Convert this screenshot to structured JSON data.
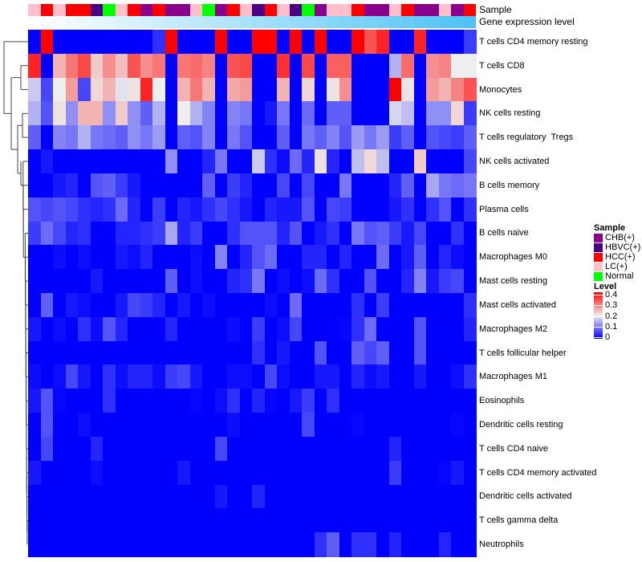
{
  "chart_data": {
    "type": "heatmap",
    "annotations": {
      "sample_label": "Sample",
      "expression_label": "Gene expression level",
      "expression_colors": [
        "#ffffff",
        "#4fc3f7"
      ]
    },
    "columns": [
      "LC(+)",
      "HCC(+)",
      "LC(+)",
      "HCC(+)",
      "HCC(+)",
      "HBVC(+)",
      "Normal",
      "LC(+)",
      "HCC(+)",
      "CHB(+)",
      "HCC(+)",
      "CHB(+)",
      "CHB(+)",
      "LC(+)",
      "Normal",
      "CHB(+)",
      "HCC(+)",
      "LC(+)",
      "HBVC(+)",
      "HCC(+)",
      "LC(+)",
      "HBVC(+)",
      "Normal",
      "CHB(+)",
      "LC(+)",
      "LC(+)",
      "HCC(+)",
      "CHB(+)",
      "CHB(+)",
      "LC(+)",
      "HCC(+)",
      "CHB(+)",
      "CHB(+)",
      "LC(+)",
      "CHB(+)",
      "HCC(+)"
    ],
    "rows": [
      "T cells CD4 memory resting",
      "T cells CD8",
      "Monocytes",
      "NK cells resting",
      "T cells regulatory  Tregs",
      "NK cells activated",
      "B cells memory",
      "Plasma cells",
      "B cells naive",
      "Macrophages M0",
      "Mast cells resting",
      "Mast cells activated",
      "Macrophages M2",
      "T cells follicular helper",
      "Macrophages M1",
      "Eosinophils",
      "Dendritic cells resting",
      "T cells CD4 naive",
      "T cells CD4 memory activated",
      "Dendritic cells activated",
      "T cells gamma delta",
      "Neutrophils"
    ],
    "values": [
      [
        0,
        0.4,
        0,
        0,
        0,
        0,
        0,
        0,
        0,
        0,
        0.04,
        0.4,
        0,
        0,
        0,
        0.4,
        0,
        0,
        0.4,
        0.4,
        0,
        0.4,
        0,
        0.4,
        0,
        0,
        0.4,
        0.33,
        0.37,
        0,
        0,
        0.37,
        0,
        0,
        0,
        0.05
      ],
      [
        0.37,
        0,
        0.25,
        0.3,
        0.34,
        0.23,
        0.28,
        0.24,
        0.33,
        0.28,
        0.3,
        0,
        0.3,
        0.31,
        0.29,
        0,
        0.33,
        0.34,
        0,
        0,
        0.36,
        0,
        0.34,
        0,
        0.32,
        0.32,
        0,
        0,
        0,
        0.15,
        0.31,
        0,
        0.28,
        0.29,
        0.2,
        0.2
      ],
      [
        0.17,
        0.06,
        0.2,
        0.27,
        0.06,
        0.22,
        0.25,
        0.19,
        0.21,
        0.37,
        0.2,
        0,
        0.25,
        0.3,
        0.25,
        0,
        0.26,
        0.27,
        0,
        0,
        0.25,
        0,
        0.22,
        0,
        0.21,
        0.28,
        0,
        0,
        0,
        0.4,
        0.21,
        0,
        0.27,
        0.25,
        0.29,
        0.33
      ],
      [
        0.15,
        0.07,
        0.21,
        0.12,
        0.25,
        0.25,
        0.12,
        0.23,
        0.12,
        0.08,
        0.15,
        0,
        0.2,
        0.15,
        0.11,
        0,
        0.11,
        0.1,
        0,
        0.02,
        0.1,
        0,
        0.09,
        0,
        0.08,
        0.08,
        0,
        0,
        0,
        0.18,
        0.16,
        0,
        0.12,
        0.12,
        0.22,
        0.05
      ],
      [
        0.08,
        0,
        0.11,
        0.1,
        0.15,
        0.1,
        0.09,
        0.08,
        0.12,
        0.1,
        0.13,
        0,
        0.08,
        0.07,
        0.11,
        0,
        0.1,
        0.07,
        0,
        0,
        0.08,
        0,
        0.1,
        0.08,
        0.11,
        0.07,
        0.13,
        0.1,
        0.13,
        0.05,
        0.08,
        0,
        0.07,
        0.06,
        0.05,
        0.08
      ],
      [
        0,
        0.02,
        0,
        0,
        0,
        0,
        0,
        0,
        0,
        0,
        0,
        0.12,
        0,
        0,
        0.03,
        0.1,
        0,
        0,
        0.17,
        0.04,
        0.01,
        0.09,
        0.03,
        0.21,
        0.03,
        0,
        0.16,
        0.22,
        0.16,
        0,
        0,
        0.23,
        0,
        0,
        0,
        0.06
      ],
      [
        0,
        0,
        0.02,
        0.03,
        0,
        0.07,
        0.08,
        0.05,
        0.02,
        0,
        0,
        0,
        0,
        0,
        0.08,
        0,
        0.05,
        0.03,
        0,
        0,
        0.06,
        0,
        0.06,
        0,
        0,
        0.1,
        0,
        0,
        0,
        0.03,
        0.08,
        0,
        0.14,
        0.1,
        0.09,
        0.1
      ],
      [
        0.07,
        0.06,
        0.07,
        0.06,
        0.04,
        0.03,
        0.04,
        0.09,
        0.03,
        0,
        0.05,
        0,
        0.03,
        0.02,
        0.04,
        0.06,
        0.04,
        0.02,
        0,
        0.03,
        0.02,
        0.02,
        0.07,
        0,
        0.06,
        0.05,
        0,
        0,
        0,
        0.02,
        0.04,
        0,
        0.04,
        0.07,
        0,
        0.04
      ],
      [
        0.05,
        0.09,
        0.06,
        0.03,
        0.04,
        0,
        0,
        0.03,
        0.03,
        0.04,
        0.05,
        0.14,
        0.03,
        0.05,
        0,
        0,
        0.04,
        0.07,
        0.07,
        0.07,
        0.03,
        0.07,
        0,
        0.02,
        0.04,
        0,
        0.1,
        0.07,
        0.08,
        0.05,
        0.02,
        0.06,
        0,
        0,
        0.04,
        0
      ],
      [
        0,
        0,
        0.01,
        0,
        0.01,
        0,
        0,
        0.02,
        0.01,
        0.03,
        0,
        0,
        0,
        0.01,
        0,
        0.11,
        0,
        0.03,
        0.07,
        0.09,
        0,
        0,
        0.03,
        0.03,
        0,
        0.03,
        0,
        0,
        0.09,
        0,
        0.02,
        0.08,
        0,
        0.03,
        0.01,
        0
      ],
      [
        0,
        0,
        0,
        0,
        0,
        0.02,
        0,
        0,
        0,
        0,
        0,
        0.08,
        0,
        0.01,
        0,
        0,
        0.03,
        0.04,
        0.1,
        0,
        0.01,
        0,
        0.01,
        0.09,
        0.04,
        0,
        0,
        0.07,
        0,
        0,
        0.03,
        0.11,
        0.02,
        0.05,
        0.06,
        0
      ],
      [
        0,
        0.08,
        0,
        0.02,
        0.01,
        0,
        0,
        0.02,
        0.06,
        0.05,
        0.03,
        0,
        0.02,
        0,
        0.01,
        0,
        0,
        0,
        0,
        0.01,
        0,
        0.09,
        0,
        0,
        0,
        0,
        0.04,
        0,
        0.05,
        0,
        0,
        0,
        0,
        0,
        0,
        0.04
      ],
      [
        0.02,
        0,
        0.01,
        0,
        0.04,
        0.01,
        0.07,
        0.03,
        0,
        0,
        0,
        0.03,
        0,
        0,
        0,
        0,
        0.01,
        0,
        0.05,
        0,
        0.01,
        0.06,
        0,
        0,
        0,
        0.005,
        0.04,
        0.09,
        0,
        0,
        0,
        0.07,
        0,
        0,
        0,
        0.03
      ],
      [
        0,
        0,
        0,
        0,
        0,
        0,
        0,
        0,
        0,
        0,
        0,
        0,
        0,
        0,
        0,
        0,
        0,
        0,
        0.04,
        0,
        0.02,
        0,
        0,
        0.07,
        0,
        0,
        0.08,
        0.06,
        0.08,
        0,
        0,
        0.07,
        0,
        0,
        0,
        0
      ],
      [
        0.01,
        0,
        0.01,
        0.06,
        0.02,
        0,
        0.04,
        0.01,
        0.03,
        0.03,
        0.01,
        0.05,
        0.06,
        0.02,
        0,
        0,
        0.01,
        0.01,
        0,
        0.06,
        0.01,
        0,
        0,
        0.02,
        0.02,
        0,
        0.03,
        0.01,
        0.02,
        0,
        0,
        0.02,
        0,
        0,
        0.01,
        0.04
      ],
      [
        0.02,
        0.07,
        0.005,
        0,
        0,
        0,
        0.04,
        0,
        0,
        0,
        0,
        0,
        0,
        0.005,
        0,
        0.01,
        0.04,
        0,
        0.03,
        0.005,
        0,
        0.02,
        0.05,
        0,
        0.04,
        0,
        0,
        0,
        0,
        0,
        0,
        0,
        0,
        0,
        0,
        0
      ],
      [
        0,
        0.07,
        0,
        0,
        0.01,
        0,
        0,
        0,
        0,
        0,
        0,
        0,
        0,
        0,
        0,
        0,
        0.01,
        0,
        0,
        0,
        0,
        0,
        0.06,
        0,
        0,
        0,
        0.005,
        0,
        0,
        0,
        0,
        0,
        0,
        0,
        0.005,
        0
      ],
      [
        0,
        0.06,
        0,
        0,
        0,
        0.03,
        0,
        0,
        0,
        0,
        0,
        0,
        0,
        0,
        0,
        0.06,
        0,
        0,
        0,
        0,
        0,
        0,
        0,
        0,
        0,
        0,
        0,
        0,
        0,
        0.03,
        0,
        0,
        0,
        0,
        0,
        0
      ],
      [
        0.02,
        0,
        0,
        0,
        0,
        0.01,
        0,
        0,
        0,
        0,
        0,
        0,
        0.02,
        0,
        0,
        0,
        0,
        0,
        0,
        0,
        0,
        0,
        0,
        0,
        0,
        0,
        0,
        0,
        0,
        0.05,
        0,
        0,
        0,
        0.005,
        0.02,
        0
      ],
      [
        0,
        0,
        0,
        0,
        0,
        0,
        0,
        0,
        0,
        0,
        0,
        0,
        0,
        0,
        0,
        0.02,
        0,
        0,
        0.03,
        0,
        0,
        0,
        0,
        0,
        0,
        0,
        0,
        0,
        0,
        0,
        0,
        0,
        0,
        0,
        0,
        0
      ],
      [
        0,
        0,
        0,
        0,
        0,
        0,
        0,
        0,
        0,
        0,
        0,
        0,
        0,
        0,
        0,
        0,
        0,
        0,
        0,
        0,
        0,
        0,
        0,
        0,
        0,
        0,
        0,
        0,
        0,
        0,
        0,
        0,
        0,
        0,
        0,
        0
      ],
      [
        0,
        0,
        0,
        0,
        0,
        0,
        0,
        0,
        0,
        0,
        0,
        0,
        0,
        0,
        0,
        0,
        0,
        0,
        0,
        0,
        0,
        0,
        0,
        0.04,
        0.08,
        0,
        0.04,
        0.04,
        0,
        0.03,
        0,
        0,
        0,
        0.03,
        0,
        0
      ]
    ],
    "color_scale": {
      "min": 0,
      "mid": 0.2,
      "max": 0.4,
      "low_color": "#0000ff",
      "mid_color": "#eeeeee",
      "high_color": "#ff0000"
    },
    "legend": {
      "sample_title": "Sample",
      "sample_items": [
        {
          "label": "CHB(+)",
          "color": "#8b008b"
        },
        {
          "label": "HBVC(+)",
          "color": "#4b0082"
        },
        {
          "label": "HCC(+)",
          "color": "#ff0000"
        },
        {
          "label": "LC(+)",
          "color": "#ffc0cb"
        },
        {
          "label": "Normal",
          "color": "#00ff00"
        }
      ],
      "level_title": "Level",
      "level_ticks": [
        "0.4",
        "0.3",
        "0.2",
        "0.1",
        "0"
      ],
      "placement": "right"
    }
  }
}
